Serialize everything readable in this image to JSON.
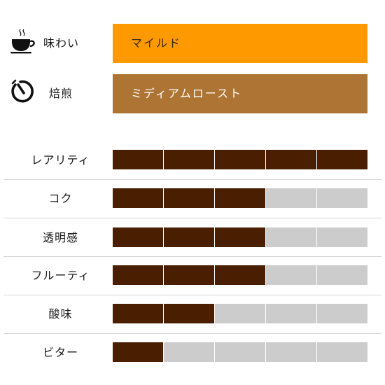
{
  "flavor": {
    "label": "味わい",
    "value": "マイルド",
    "color": "#ff9900",
    "icon": "steaming-cup-icon"
  },
  "roast": {
    "label": "焙煎",
    "value": "ミディアムロースト",
    "color": "#ad7433",
    "icon": "timer-icon"
  },
  "colors": {
    "filled": "#4a1e00",
    "empty": "#cccccc",
    "divider": "#d6d6d6"
  },
  "ratings": [
    {
      "label": "レアリティ",
      "value": 5,
      "max": 5
    },
    {
      "label": "コク",
      "value": 3,
      "max": 5
    },
    {
      "label": "透明感",
      "value": 3,
      "max": 5
    },
    {
      "label": "フルーティ",
      "value": 3,
      "max": 5
    },
    {
      "label": "酸味",
      "value": 2,
      "max": 5
    },
    {
      "label": "ビター",
      "value": 1,
      "max": 5
    }
  ]
}
